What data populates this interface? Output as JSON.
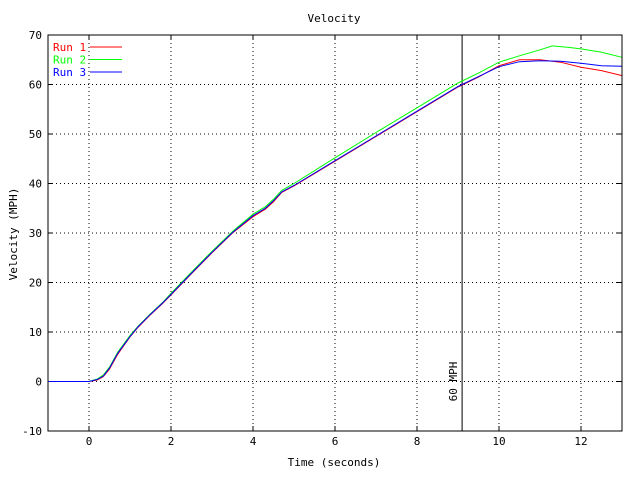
{
  "chart_data": {
    "type": "line",
    "title": "Velocity",
    "xlabel": "Time (seconds)",
    "ylabel": "Velocity (MPH)",
    "xlim": [
      -1,
      13
    ],
    "ylim": [
      -10,
      70
    ],
    "x_ticks": [
      0,
      2,
      4,
      6,
      8,
      10,
      12
    ],
    "y_ticks": [
      -10,
      0,
      10,
      20,
      30,
      40,
      50,
      60,
      70
    ],
    "grid": true,
    "legend_position": "top-left",
    "annotation": {
      "text": "60 MPH",
      "x": 9.1
    },
    "series": [
      {
        "name": "Run 1",
        "color": "#ff0000",
        "points": [
          [
            -1,
            0
          ],
          [
            0,
            0
          ],
          [
            0.2,
            0.3
          ],
          [
            0.35,
            1
          ],
          [
            0.5,
            2.5
          ],
          [
            0.7,
            5.5
          ],
          [
            1.0,
            9
          ],
          [
            1.2,
            11
          ],
          [
            1.5,
            13.5
          ],
          [
            1.8,
            15.8
          ],
          [
            2.0,
            17.5
          ],
          [
            2.5,
            21.8
          ],
          [
            3.0,
            26
          ],
          [
            3.5,
            30
          ],
          [
            4.0,
            33.3
          ],
          [
            4.3,
            34.8
          ],
          [
            4.5,
            36.3
          ],
          [
            4.7,
            38.2
          ],
          [
            5.0,
            39.5
          ],
          [
            6.0,
            44.5
          ],
          [
            7.0,
            49.5
          ],
          [
            8.0,
            54.5
          ],
          [
            9.0,
            59.5
          ],
          [
            9.5,
            61.5
          ],
          [
            10.0,
            63.8
          ],
          [
            10.5,
            65
          ],
          [
            11.0,
            65
          ],
          [
            11.5,
            64.5
          ],
          [
            12.0,
            63.5
          ],
          [
            12.5,
            62.8
          ],
          [
            13.0,
            61.8
          ]
        ]
      },
      {
        "name": "Run 2",
        "color": "#00ff00",
        "points": [
          [
            -1,
            0
          ],
          [
            0,
            0
          ],
          [
            0.2,
            0.5
          ],
          [
            0.35,
            1.3
          ],
          [
            0.5,
            2.9
          ],
          [
            0.7,
            5.9
          ],
          [
            1.0,
            9.3
          ],
          [
            1.2,
            11.2
          ],
          [
            1.5,
            13.7
          ],
          [
            1.8,
            16
          ],
          [
            2.0,
            17.8
          ],
          [
            2.5,
            22.1
          ],
          [
            3.0,
            26.3
          ],
          [
            3.5,
            30.3
          ],
          [
            4.0,
            33.8
          ],
          [
            4.3,
            35.3
          ],
          [
            4.5,
            36.8
          ],
          [
            4.7,
            38.6
          ],
          [
            5.0,
            40
          ],
          [
            6.0,
            45.2
          ],
          [
            7.0,
            50.3
          ],
          [
            8.0,
            55.3
          ],
          [
            9.0,
            60.3
          ],
          [
            9.5,
            62.3
          ],
          [
            10.0,
            64.5
          ],
          [
            10.5,
            65.8
          ],
          [
            11.0,
            67
          ],
          [
            11.3,
            67.8
          ],
          [
            11.7,
            67.5
          ],
          [
            12.0,
            67.2
          ],
          [
            12.5,
            66.5
          ],
          [
            13.0,
            65.5
          ]
        ]
      },
      {
        "name": "Run 3",
        "color": "#0000ff",
        "points": [
          [
            -1,
            0
          ],
          [
            0,
            0
          ],
          [
            0.2,
            0.4
          ],
          [
            0.35,
            1.1
          ],
          [
            0.5,
            2.7
          ],
          [
            0.7,
            5.7
          ],
          [
            1.0,
            9.1
          ],
          [
            1.2,
            11.1
          ],
          [
            1.5,
            13.6
          ],
          [
            1.8,
            15.9
          ],
          [
            2.0,
            17.6
          ],
          [
            2.5,
            21.9
          ],
          [
            3.0,
            26.1
          ],
          [
            3.5,
            30.1
          ],
          [
            4.0,
            33.5
          ],
          [
            4.3,
            35
          ],
          [
            4.5,
            36.5
          ],
          [
            4.7,
            38.3
          ],
          [
            5.0,
            39.6
          ],
          [
            6.0,
            44.6
          ],
          [
            7.0,
            49.6
          ],
          [
            8.0,
            54.6
          ],
          [
            9.0,
            59.6
          ],
          [
            9.5,
            61.6
          ],
          [
            10.0,
            63.6
          ],
          [
            10.5,
            64.6
          ],
          [
            11.0,
            64.8
          ],
          [
            11.5,
            64.7
          ],
          [
            12.0,
            64.3
          ],
          [
            12.5,
            63.8
          ],
          [
            13.0,
            63.7
          ]
        ]
      }
    ]
  }
}
